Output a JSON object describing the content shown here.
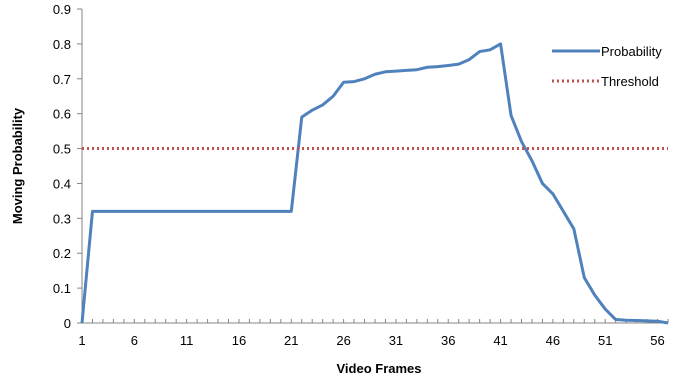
{
  "chart_data": {
    "type": "line",
    "title": "",
    "xlabel": "Video Frames",
    "ylabel": "Moving Probability",
    "xlim": [
      1,
      57
    ],
    "ylim": [
      0,
      0.9
    ],
    "y_ticks": [
      "0",
      "0.1",
      "0.2",
      "0.3",
      "0.4",
      "0.5",
      "0.6",
      "0.7",
      "0.8",
      "0.9"
    ],
    "x_ticks": [
      "1",
      "6",
      "11",
      "16",
      "21",
      "26",
      "31",
      "36",
      "41",
      "46",
      "51",
      "56"
    ],
    "grid": false,
    "legend_position": "right",
    "series": [
      {
        "name": "Probability",
        "style": "solid",
        "color": "#4F81BD",
        "x": [
          1,
          2,
          3,
          4,
          5,
          6,
          7,
          8,
          9,
          10,
          11,
          12,
          13,
          14,
          15,
          16,
          17,
          18,
          19,
          20,
          21,
          22,
          23,
          24,
          25,
          26,
          27,
          28,
          29,
          30,
          31,
          32,
          33,
          34,
          35,
          36,
          37,
          38,
          39,
          40,
          41,
          42,
          43,
          44,
          45,
          46,
          47,
          48,
          49,
          50,
          51,
          52,
          53,
          54,
          55,
          56,
          57
        ],
        "values": [
          0,
          0.32,
          0.32,
          0.32,
          0.32,
          0.32,
          0.32,
          0.32,
          0.32,
          0.32,
          0.32,
          0.32,
          0.32,
          0.32,
          0.32,
          0.32,
          0.32,
          0.32,
          0.32,
          0.32,
          0.32,
          0.59,
          0.61,
          0.625,
          0.65,
          0.69,
          0.692,
          0.7,
          0.713,
          0.72,
          0.722,
          0.724,
          0.726,
          0.733,
          0.735,
          0.738,
          0.742,
          0.755,
          0.778,
          0.783,
          0.8,
          0.595,
          0.52,
          0.465,
          0.4,
          0.37,
          0.32,
          0.27,
          0.13,
          0.08,
          0.04,
          0.01,
          0.008,
          0.007,
          0.006,
          0.005,
          0
        ]
      },
      {
        "name": "Threshold",
        "style": "dotted",
        "color": "#C0504D",
        "x": [
          1,
          57
        ],
        "values": [
          0.5,
          0.5
        ]
      }
    ]
  }
}
